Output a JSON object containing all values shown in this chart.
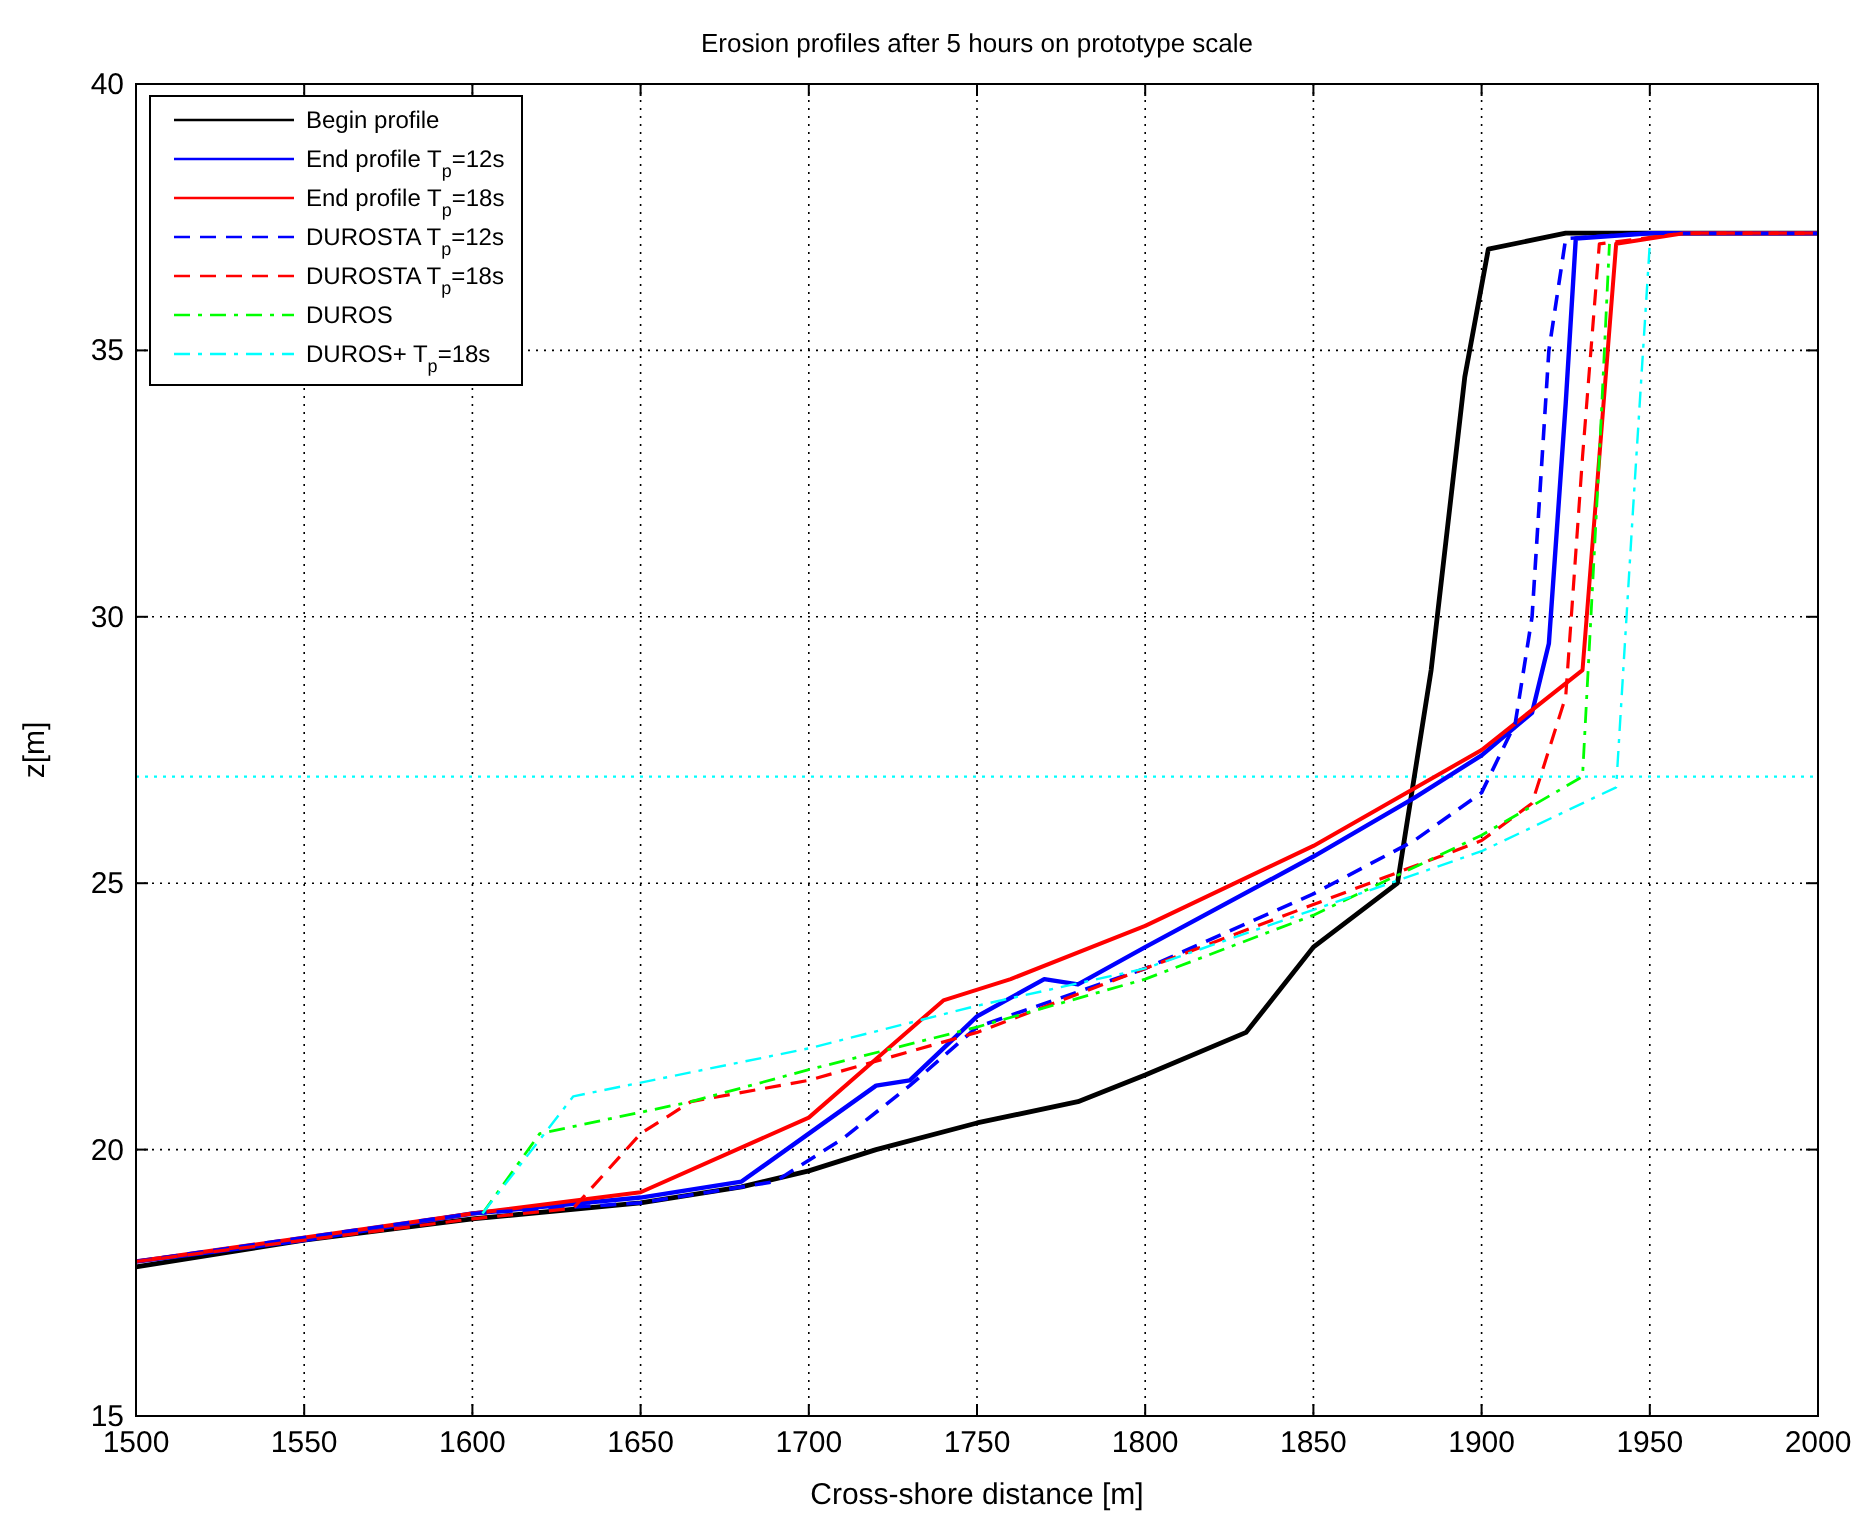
{
  "chart_data": {
    "type": "line",
    "title": "Erosion profiles after 5 hours on prototype scale",
    "xlabel": "Cross-shore distance [m]",
    "ylabel": "z[m]",
    "xlim": [
      1500,
      2000
    ],
    "xticks": [
      1500,
      1550,
      1600,
      1650,
      1700,
      1750,
      1800,
      1850,
      1900,
      1950,
      2000
    ],
    "ylim": [
      15,
      40
    ],
    "yticks": [
      15,
      20,
      25,
      30,
      35,
      40
    ],
    "grid": true,
    "legend": "top left",
    "ref_lines": [
      {
        "axis": "y",
        "value": 27,
        "color": "#00ffff",
        "line_style": "dotted"
      }
    ],
    "series": [
      {
        "name": "Begin profile",
        "color": "#000000",
        "line_style": "solid",
        "x": [
          1500,
          1550,
          1600,
          1650,
          1680,
          1700,
          1720,
          1750,
          1780,
          1800,
          1830,
          1850,
          1875,
          1885,
          1895,
          1902,
          1925,
          1950,
          2000
        ],
        "values": [
          17.8,
          18.3,
          18.7,
          19.0,
          19.3,
          19.6,
          20.0,
          20.5,
          20.9,
          21.4,
          22.2,
          23.8,
          25.0,
          29.0,
          34.5,
          36.9,
          37.2,
          37.2,
          37.2
        ]
      },
      {
        "name": "End profile T$_{p}$=12s",
        "color": "#0000ff",
        "line_style": "solid",
        "x": [
          1500,
          1550,
          1600,
          1650,
          1680,
          1700,
          1720,
          1730,
          1750,
          1770,
          1780,
          1800,
          1850,
          1880,
          1900,
          1915,
          1920,
          1925,
          1928,
          1950,
          2000
        ],
        "values": [
          17.9,
          18.3,
          18.8,
          19.1,
          19.4,
          20.3,
          21.2,
          21.3,
          22.5,
          23.2,
          23.1,
          23.8,
          25.5,
          26.6,
          27.4,
          28.2,
          29.5,
          34.0,
          37.1,
          37.2,
          37.2
        ]
      },
      {
        "name": "End profile T$_{p}$=18s",
        "color": "#ff0000",
        "line_style": "solid",
        "x": [
          1500,
          1600,
          1650,
          1700,
          1720,
          1740,
          1760,
          1800,
          1850,
          1900,
          1930,
          1935,
          1940,
          1960,
          2000
        ],
        "values": [
          17.9,
          18.8,
          19.2,
          20.6,
          21.7,
          22.8,
          23.2,
          24.2,
          25.7,
          27.5,
          29.0,
          33.0,
          37.0,
          37.2,
          37.2
        ]
      },
      {
        "name": "DUROSTA T$_{p}$=12s",
        "color": "#0000ff",
        "line_style": "dashed",
        "x": [
          1500,
          1600,
          1650,
          1690,
          1710,
          1730,
          1750,
          1800,
          1850,
          1880,
          1900,
          1910,
          1915,
          1920,
          1925,
          1950,
          2000
        ],
        "values": [
          17.9,
          18.8,
          19.0,
          19.4,
          20.2,
          21.2,
          22.3,
          23.4,
          24.8,
          25.8,
          26.7,
          28.0,
          30.0,
          35.0,
          37.1,
          37.2,
          37.2
        ]
      },
      {
        "name": "DUROSTA T$_{p}$=18s",
        "color": "#ff0000",
        "line_style": "dashed",
        "x": [
          1500,
          1600,
          1630,
          1650,
          1665,
          1700,
          1750,
          1800,
          1850,
          1900,
          1915,
          1925,
          1930,
          1935,
          1960,
          2000
        ],
        "values": [
          17.9,
          18.7,
          18.9,
          20.3,
          20.9,
          21.3,
          22.2,
          23.4,
          24.6,
          25.8,
          26.5,
          28.5,
          33.0,
          37.0,
          37.2,
          37.2
        ]
      },
      {
        "name": "DUROS",
        "color": "#00ff00",
        "line_style": "dashdot",
        "x": [
          1603,
          1620,
          1665,
          1700,
          1750,
          1800,
          1850,
          1900,
          1930,
          1935,
          1938
        ],
        "values": [
          18.8,
          20.3,
          20.9,
          21.5,
          22.3,
          23.2,
          24.4,
          25.9,
          27.0,
          33.0,
          37.0
        ]
      },
      {
        "name": "DUROS+ T$_{p}$=18s",
        "color": "#00ffff",
        "line_style": "dashdot",
        "x": [
          1603,
          1630,
          1700,
          1750,
          1800,
          1850,
          1900,
          1940,
          1945,
          1950
        ],
        "values": [
          18.8,
          21.0,
          21.9,
          22.7,
          23.4,
          24.5,
          25.6,
          26.8,
          32.0,
          37.0
        ]
      }
    ]
  }
}
